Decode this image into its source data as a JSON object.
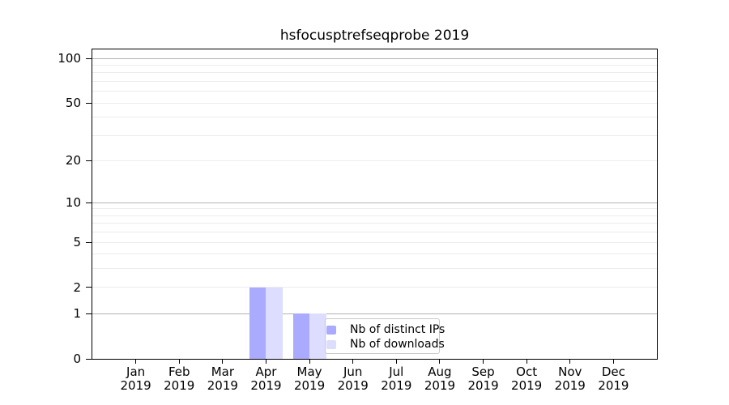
{
  "chart_data": {
    "type": "bar",
    "title": "hsfocusptrefseqprobe 2019",
    "categories": [
      "Jan 2019",
      "Feb 2019",
      "Mar 2019",
      "Apr 2019",
      "May 2019",
      "Jun 2019",
      "Jul 2019",
      "Aug 2019",
      "Sep 2019",
      "Oct 2019",
      "Nov 2019",
      "Dec 2019"
    ],
    "month_labels": [
      "Jan",
      "Feb",
      "Mar",
      "Apr",
      "May",
      "Jun",
      "Jul",
      "Aug",
      "Sep",
      "Oct",
      "Nov",
      "Dec"
    ],
    "year_label": "2019",
    "series": [
      {
        "name": "Nb of distinct IPs",
        "color": "#aaaaff",
        "values": [
          0,
          0,
          0,
          2,
          1,
          0,
          0,
          0,
          0,
          0,
          0,
          0
        ]
      },
      {
        "name": "Nb of downloads",
        "color": "#ddddff",
        "values": [
          0,
          0,
          0,
          2,
          1,
          0,
          0,
          0,
          0,
          0,
          0,
          0
        ]
      }
    ],
    "y_axis": {
      "scale": "log1p",
      "ticks": [
        0,
        1,
        2,
        5,
        10,
        20,
        50,
        100
      ],
      "max": 115,
      "minor_gridlines": [
        2,
        3,
        4,
        5,
        6,
        7,
        8,
        9,
        20,
        30,
        40,
        50,
        60,
        70,
        80,
        90
      ],
      "decade_gridlines": [
        1,
        10,
        100
      ]
    },
    "x_axis": {
      "label": "",
      "tick_count": 12
    },
    "ylabel": "",
    "xlabel": "",
    "legend": {
      "position": "bottom-center",
      "entries": [
        "Nb of distinct IPs",
        "Nb of downloads"
      ]
    },
    "colors": {
      "grid_minor": "#ececec",
      "grid_decade": "#b2b2b2",
      "axis": "#000000",
      "background": "#ffffff"
    }
  }
}
